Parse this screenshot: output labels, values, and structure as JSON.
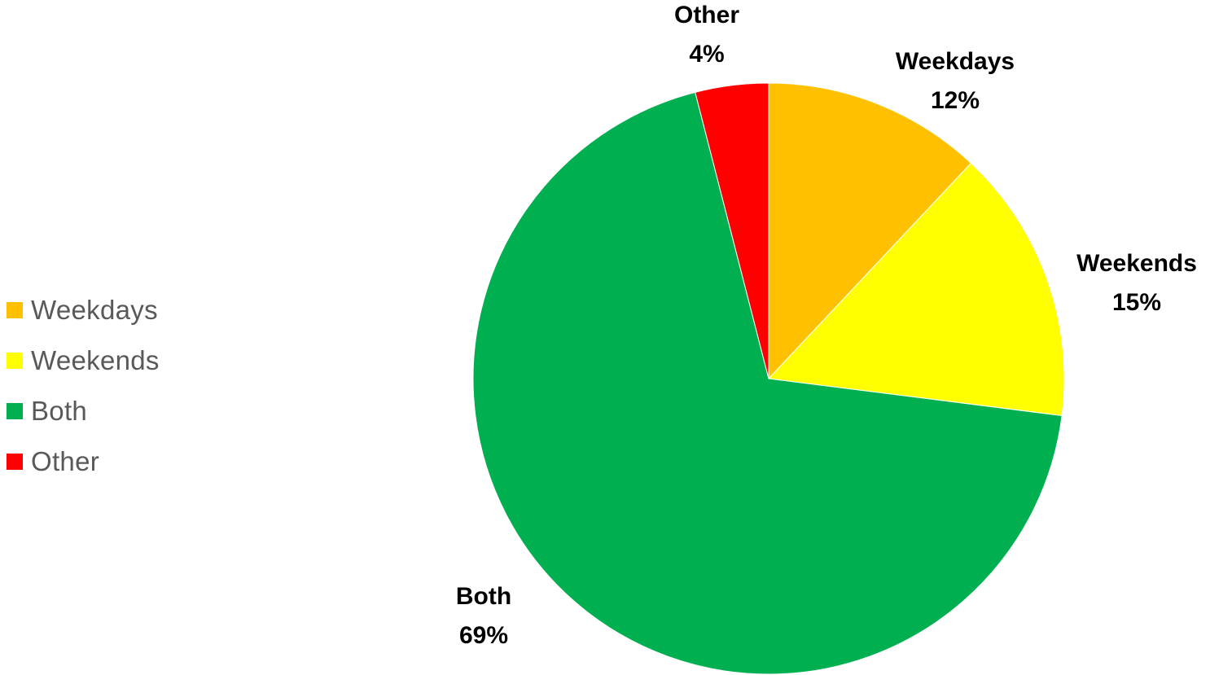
{
  "chart_data": {
    "type": "pie",
    "title": "",
    "start_angle_deg": 0,
    "direction": "clockwise",
    "legend_position": "left",
    "slices": [
      {
        "name": "Weekdays",
        "value": 12,
        "label": "12%",
        "color": "#FFC000"
      },
      {
        "name": "Weekends",
        "value": 15,
        "label": "15%",
        "color": "#FFFF00"
      },
      {
        "name": "Both",
        "value": 69,
        "label": "69%",
        "color": "#00B050"
      },
      {
        "name": "Other",
        "value": 4,
        "label": "4%",
        "color": "#FF0000"
      }
    ]
  }
}
